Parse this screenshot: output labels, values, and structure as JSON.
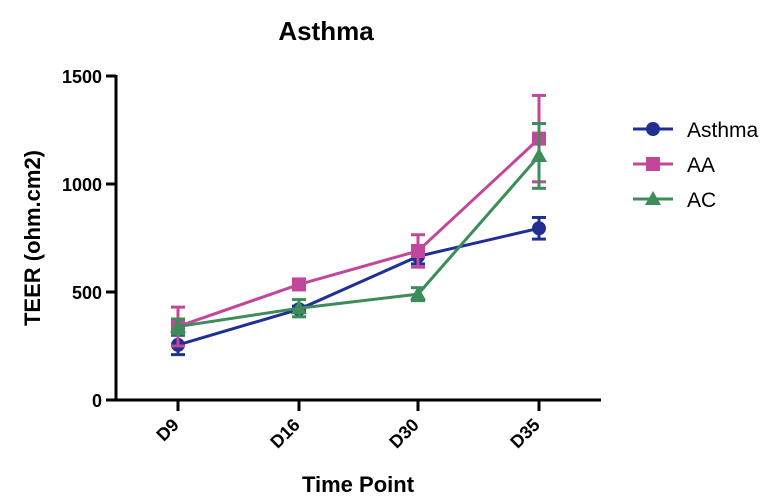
{
  "chart_data": {
    "type": "line",
    "title": "Asthma",
    "xlabel": "Time Point",
    "ylabel": "TEER (ohm.cm2)",
    "categories": [
      "D9",
      "D16",
      "D30",
      "D35"
    ],
    "ylim": [
      0,
      1500
    ],
    "yticks": [
      0,
      500,
      1000,
      1500
    ],
    "grid": false,
    "legend_position": "top-right",
    "series": [
      {
        "name": "Asthma",
        "color": "#1f2f94",
        "marker": "circle",
        "values": [
          255,
          420,
          665,
          795
        ],
        "errors": [
          45,
          15,
          35,
          50
        ]
      },
      {
        "name": "AA",
        "color": "#c2479b",
        "marker": "square",
        "values": [
          340,
          535,
          690,
          1210
        ],
        "errors": [
          90,
          10,
          75,
          200
        ]
      },
      {
        "name": "AC",
        "color": "#3d8c5a",
        "marker": "triangle",
        "values": [
          340,
          425,
          490,
          1130
        ],
        "errors": [
          35,
          40,
          30,
          150
        ]
      }
    ]
  }
}
